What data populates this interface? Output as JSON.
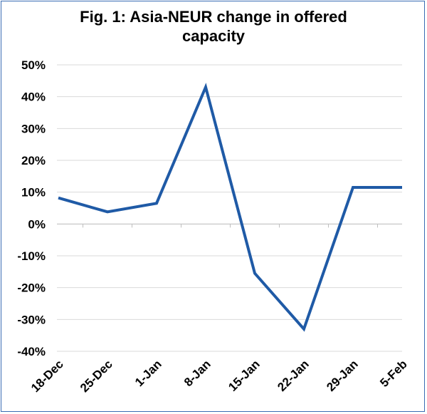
{
  "chart_data": {
    "type": "line",
    "title_lines": [
      "Fig. 1: Asia-NEUR change in offered",
      "capacity"
    ],
    "categories": [
      "18-Dec",
      "25-Dec",
      "1-Jan",
      "8-Jan",
      "15-Jan",
      "22-Jan",
      "29-Jan",
      "5-Feb"
    ],
    "series": [
      {
        "values": [
          8.2,
          3.8,
          6.5,
          43.0,
          -15.5,
          -33.0,
          11.5,
          11.5
        ]
      }
    ],
    "ylim": [
      -40,
      50
    ],
    "yticks": [
      -40,
      -30,
      -20,
      -10,
      0,
      10,
      20,
      30,
      40,
      50
    ],
    "ytick_labels": [
      "-40%",
      "-30%",
      "-20%",
      "-10%",
      "0%",
      "10%",
      "20%",
      "30%",
      "40%",
      "50%"
    ],
    "xlabel": "",
    "ylabel": "",
    "grid": true,
    "legend": "none",
    "line_color": "#1f5aa6",
    "grid_color": "#d9d9d9"
  }
}
